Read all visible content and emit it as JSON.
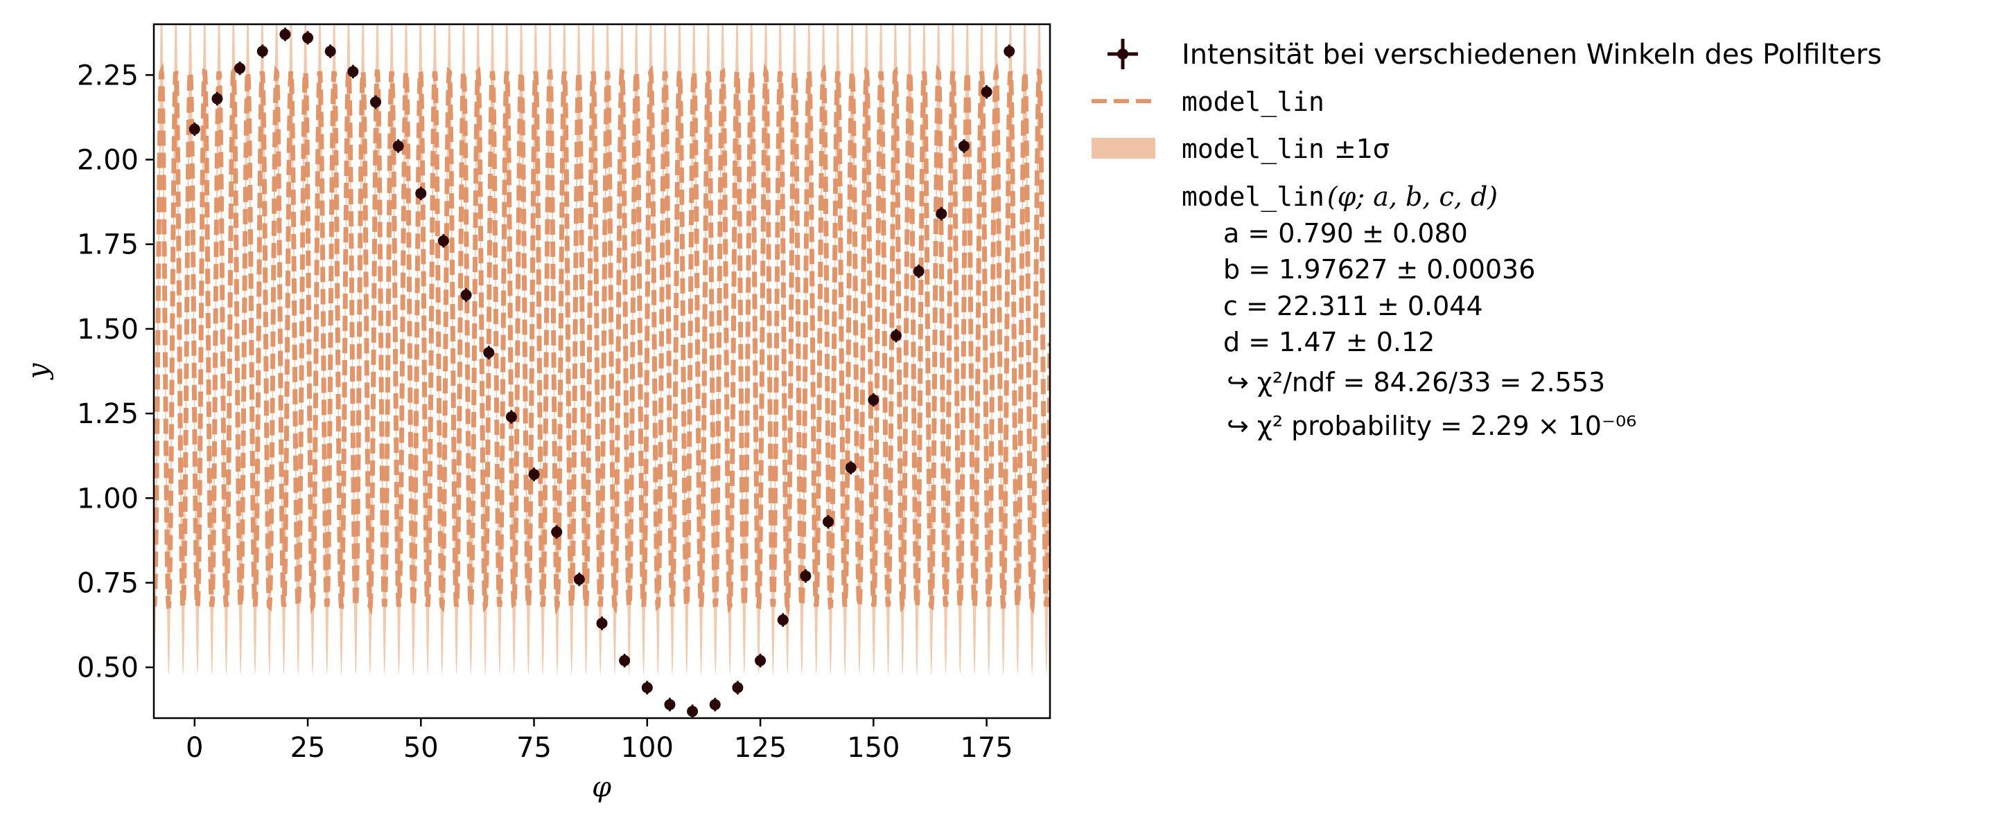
{
  "chart_data": {
    "type": "scatter",
    "xlabel": "φ",
    "ylabel": "y",
    "xlim": [
      -9,
      189
    ],
    "ylim": [
      0.35,
      2.4
    ],
    "xticks": [
      0,
      25,
      50,
      75,
      100,
      125,
      150,
      175
    ],
    "yticks": [
      0.5,
      0.75,
      1.0,
      1.25,
      1.5,
      1.75,
      2.0,
      2.25
    ],
    "xtick_labels": [
      "0",
      "25",
      "50",
      "75",
      "100",
      "125",
      "150",
      "175"
    ],
    "ytick_labels": [
      "0.50",
      "0.75",
      "1.00",
      "1.25",
      "1.50",
      "1.75",
      "2.00",
      "2.25"
    ],
    "grid": false,
    "legend_position": "outside-right",
    "colors": {
      "data_points": "#2a0608",
      "model_line": "#e0956a",
      "model_band": "#f0c3a5"
    },
    "series": [
      {
        "name": "Intensität bei verschiedenen Winkeln des Polfilters",
        "type": "errorbar",
        "x": [
          0,
          5,
          10,
          15,
          20,
          25,
          30,
          35,
          40,
          45,
          50,
          55,
          60,
          65,
          70,
          75,
          80,
          85,
          90,
          95,
          100,
          105,
          110,
          115,
          120,
          125,
          130,
          135,
          140,
          145,
          150,
          155,
          160,
          165,
          170,
          175,
          180
        ],
        "y": [
          2.09,
          2.18,
          2.27,
          2.32,
          2.37,
          2.36,
          2.32,
          2.26,
          2.17,
          2.04,
          1.9,
          1.76,
          1.6,
          1.43,
          1.24,
          1.07,
          0.9,
          0.76,
          0.63,
          0.52,
          0.44,
          0.39,
          0.37,
          0.39,
          0.44,
          0.52,
          0.64,
          0.77,
          0.93,
          1.09,
          1.29,
          1.48,
          1.67,
          1.84,
          2.04,
          2.2,
          2.32
        ],
        "yerr": 0.02
      },
      {
        "name": "model_lin",
        "type": "line",
        "style": "dashed",
        "function": "a*sin(b*phi + c) + d"
      },
      {
        "name": "model_lin ±1σ",
        "type": "band"
      }
    ],
    "fit": {
      "model_label": "model_lin",
      "signature": "model_lin(φ; a, b, c, d)",
      "params": [
        {
          "name": "a",
          "text": "a = 0.790 ± 0.080",
          "value": 0.79,
          "error": 0.08
        },
        {
          "name": "b",
          "text": "b = 1.97627 ± 0.00036",
          "value": 1.97627,
          "error": 0.00036
        },
        {
          "name": "c",
          "text": "c = 22.311 ± 0.044",
          "value": 22.311,
          "error": 0.044
        },
        {
          "name": "d",
          "text": "d = 1.47 ± 0.12",
          "value": 1.47,
          "error": 0.12
        }
      ],
      "chi2_ndf_text": "↪ χ²/ndf = 84.26/33 = 2.553",
      "chi2_prob_text": "↪ χ² probability = 2.29 × 10⁻⁰⁶"
    },
    "legend": {
      "data_label": "Intensität bei verschiedenen Winkeln des Polfilters",
      "model_label": "model_lin",
      "band_label_mono": "model_lin",
      "band_label_suffix": "±1σ",
      "fit_signature_mono": "model_lin",
      "fit_signature_rest": "(φ; a, b, c, d)"
    }
  }
}
